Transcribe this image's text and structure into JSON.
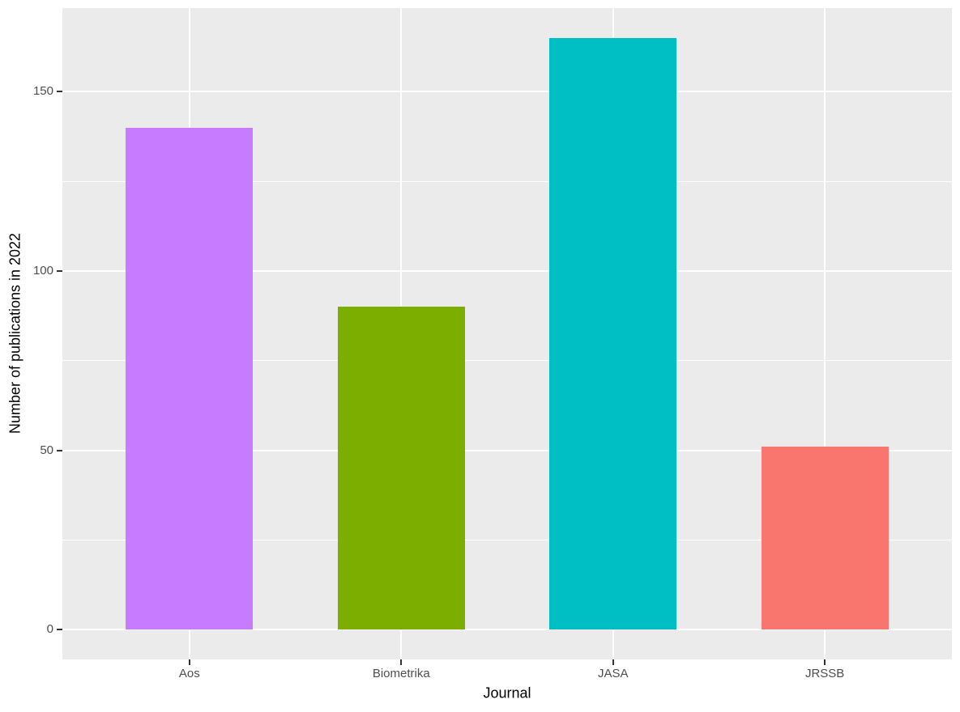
{
  "chart_data": {
    "type": "bar",
    "title": "",
    "categories": [
      "Aos",
      "Biometrika",
      "JASA",
      "JRSSB"
    ],
    "values": [
      140,
      90,
      165,
      51
    ],
    "bar_colors": [
      "#C77CFF",
      "#7CAE00",
      "#00BFC4",
      "#F8766D"
    ],
    "xlabel": "Journal",
    "ylabel": "Number of publications in 2022",
    "y_major_ticks": [
      0,
      50,
      100,
      150
    ],
    "y_minor_ticks": [
      25,
      75,
      125
    ],
    "ylim": [
      -8.3,
      173.3
    ],
    "grid": true,
    "legend": "none",
    "colors": {
      "panel_background": "#EBEBEB",
      "figure_background": "#FFFFFF",
      "grid": "#FFFFFF",
      "tick_marks": "#333333",
      "tick_labels": "#4D4D4D",
      "axis_titles": "#000000"
    }
  }
}
